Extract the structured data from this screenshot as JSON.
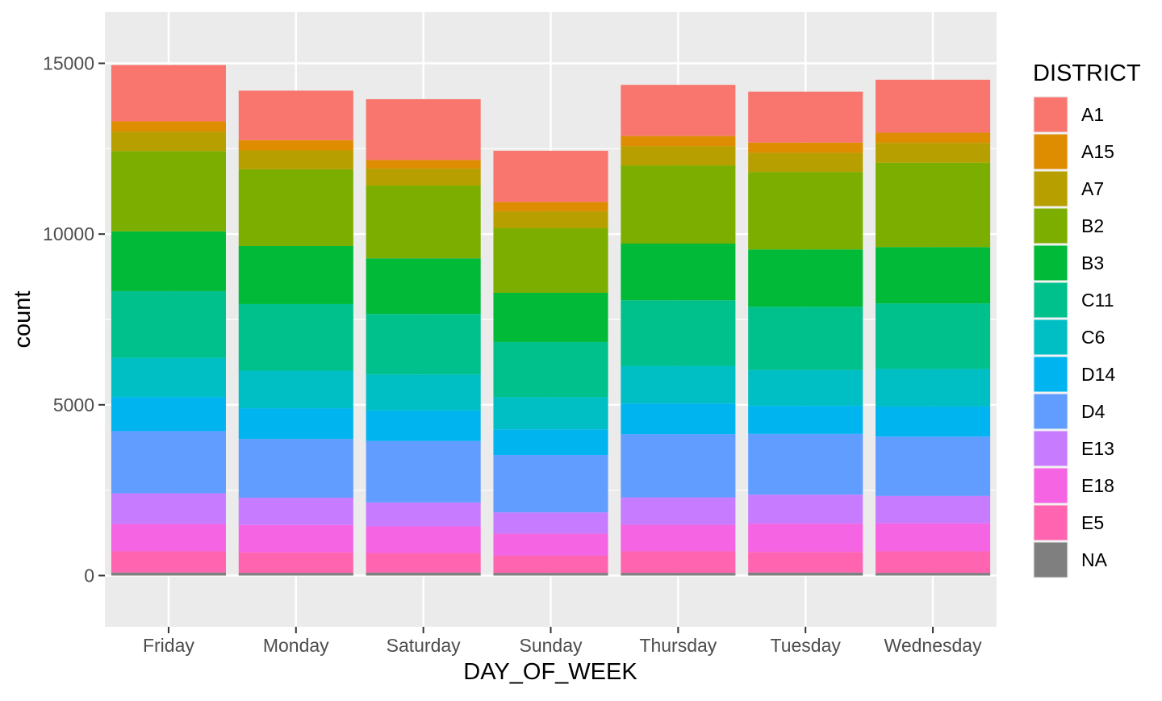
{
  "chart_data": {
    "type": "bar",
    "stacked": true,
    "title": "",
    "xlabel": "DAY_OF_WEEK",
    "ylabel": "count",
    "ylim": [
      -1500,
      16500
    ],
    "yticks": [
      0,
      5000,
      10000,
      15000
    ],
    "ytick_labels": [
      "0",
      "5000",
      "10000",
      "15000"
    ],
    "grid": true,
    "legend_position": "right",
    "legend_title": "DISTRICT",
    "categories": [
      "Friday",
      "Monday",
      "Saturday",
      "Sunday",
      "Thursday",
      "Tuesday",
      "Wednesday"
    ],
    "series": [
      {
        "name": "A1",
        "color": "#F8766D",
        "values": [
          1650,
          1450,
          1780,
          1500,
          1500,
          1490,
          1550
        ]
      },
      {
        "name": "A15",
        "color": "#DE8C00",
        "values": [
          300,
          300,
          250,
          270,
          300,
          300,
          300
        ]
      },
      {
        "name": "A7",
        "color": "#B79F00",
        "values": [
          570,
          550,
          500,
          490,
          560,
          560,
          580
        ]
      },
      {
        "name": "B2",
        "color": "#7CAE00",
        "values": [
          2350,
          2250,
          2130,
          1900,
          2290,
          2270,
          2470
        ]
      },
      {
        "name": "B3",
        "color": "#00BA38",
        "values": [
          1750,
          1700,
          1630,
          1440,
          1660,
          1680,
          1650
        ]
      },
      {
        "name": "C11",
        "color": "#00C08B",
        "values": [
          1950,
          1950,
          1770,
          1610,
          1920,
          1850,
          1920
        ]
      },
      {
        "name": "C6",
        "color": "#00BFC4",
        "values": [
          1150,
          1100,
          1050,
          950,
          1100,
          1050,
          1100
        ]
      },
      {
        "name": "D14",
        "color": "#00B4F0",
        "values": [
          1000,
          900,
          900,
          750,
          900,
          820,
          880
        ]
      },
      {
        "name": "D4",
        "color": "#619CFF",
        "values": [
          1820,
          1720,
          1800,
          1680,
          1850,
          1780,
          1740
        ]
      },
      {
        "name": "E13",
        "color": "#C77CFF",
        "values": [
          900,
          800,
          700,
          620,
          800,
          850,
          800
        ]
      },
      {
        "name": "E18",
        "color": "#F564E3",
        "values": [
          800,
          800,
          780,
          650,
          780,
          830,
          820
        ]
      },
      {
        "name": "E5",
        "color": "#FF64B0",
        "values": [
          620,
          600,
          570,
          500,
          630,
          600,
          630
        ]
      },
      {
        "name": "NA",
        "color": "#7F7F7F",
        "values": [
          90,
          80,
          90,
          80,
          80,
          90,
          80
        ]
      }
    ]
  }
}
